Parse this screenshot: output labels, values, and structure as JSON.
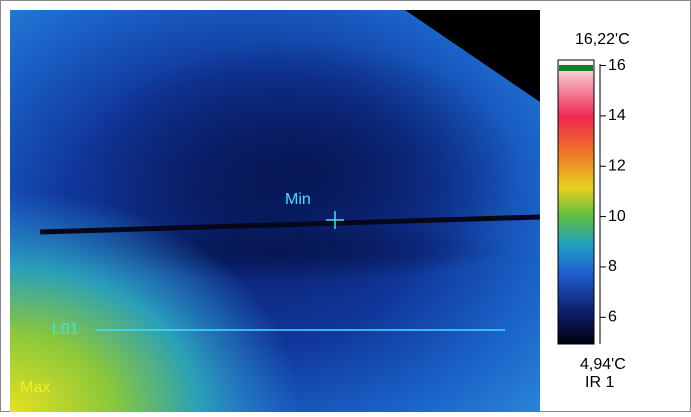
{
  "image": {
    "labels": [
      "Min",
      "L01",
      "Max"
    ]
  },
  "scale": {
    "max": {
      "value": 16.22,
      "label": "16,22'C"
    },
    "min": {
      "value": 4.94,
      "label": "4,94'C"
    },
    "ticks": [
      16,
      14,
      12,
      10,
      8,
      6
    ],
    "source": "IR 1"
  }
}
